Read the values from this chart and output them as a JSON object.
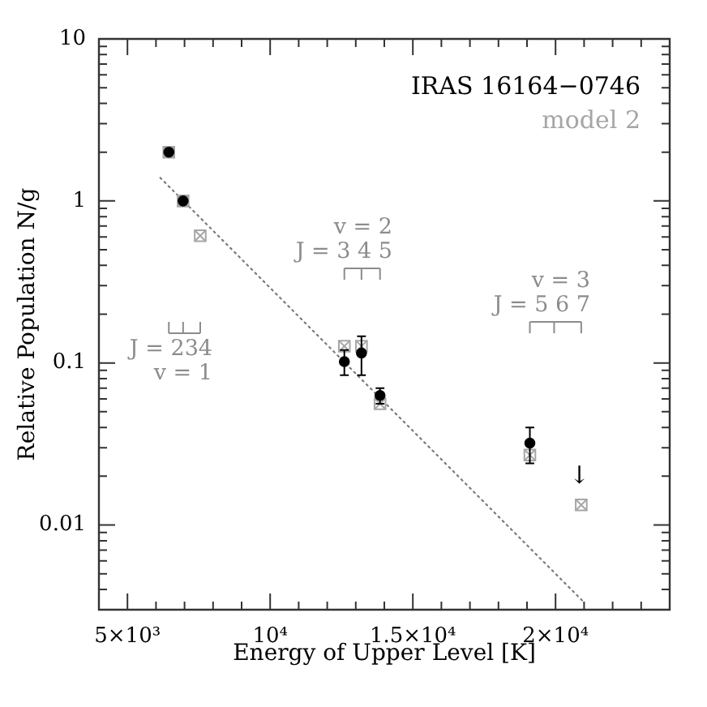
{
  "chart_data": {
    "type": "scatter",
    "xlabel": "Energy of Upper Level [K]",
    "ylabel": "Relative Population N/g",
    "x": [
      6450,
      6950,
      7550,
      12600,
      13200,
      13850,
      19100,
      19950,
      20900
    ],
    "series": [
      {
        "name": "IRAS 16164−0746",
        "color": "#000000",
        "marker": "circle",
        "values": [
          2.0,
          1.0,
          null,
          0.102,
          0.115,
          0.063,
          0.032,
          null,
          null
        ],
        "errors": [
          null,
          null,
          null,
          0.018,
          0.031,
          0.007,
          0.008,
          null,
          null
        ]
      },
      {
        "name": "model 2",
        "color": "#a6a6a6",
        "marker": "square",
        "values": [
          2.0,
          1.0,
          0.61,
          0.127,
          0.127,
          0.056,
          0.027,
          null,
          0.0133
        ]
      },
      {
        "type": "line",
        "color": "#7a7a7a",
        "marker": "none",
        "line_style": "dotted",
        "x": [
          6150,
          20950
        ],
        "values": [
          1.39,
          0.0034
        ]
      }
    ],
    "xlim": [
      4000,
      24000
    ],
    "xticks": [
      {
        "value": 5000,
        "label": "5×10³"
      },
      {
        "value": 6000,
        "label": null
      },
      {
        "value": 7000,
        "label": null
      },
      {
        "value": 8000,
        "label": null
      },
      {
        "value": 9000,
        "label": null
      },
      {
        "value": 10000,
        "label": "10⁴"
      },
      {
        "value": 11000,
        "label": null
      },
      {
        "value": 12000,
        "label": null
      },
      {
        "value": 13000,
        "label": null
      },
      {
        "value": 14000,
        "label": null
      },
      {
        "value": 15000,
        "label": "1.5×10⁴"
      },
      {
        "value": 16000,
        "label": null
      },
      {
        "value": 17000,
        "label": null
      },
      {
        "value": 18000,
        "label": null
      },
      {
        "value": 19000,
        "label": null
      },
      {
        "value": 20000,
        "label": "2×10⁴"
      },
      {
        "value": 21000,
        "label": null
      },
      {
        "value": 22000,
        "label": null
      },
      {
        "value": 23000,
        "label": null
      }
    ],
    "ylim": [
      0.003,
      10
    ],
    "yticks": [
      {
        "value": 0.004,
        "label": null
      },
      {
        "value": 0.005,
        "label": null
      },
      {
        "value": 0.006,
        "label": null
      },
      {
        "value": 0.007,
        "label": null
      },
      {
        "value": 0.008,
        "label": null
      },
      {
        "value": 0.009,
        "label": null
      },
      0.01,
      {
        "value": 0.02,
        "label": null
      },
      {
        "value": 0.03,
        "label": null
      },
      {
        "value": 0.04,
        "label": null
      },
      {
        "value": 0.05,
        "label": null
      },
      {
        "value": 0.06,
        "label": null
      },
      {
        "value": 0.07,
        "label": null
      },
      {
        "value": 0.08,
        "label": null
      },
      {
        "value": 0.09,
        "label": null
      },
      0.1,
      {
        "value": 0.2,
        "label": null
      },
      {
        "value": 0.3,
        "label": null
      },
      {
        "value": 0.4,
        "label": null
      },
      {
        "value": 0.5,
        "label": null
      },
      {
        "value": 0.6,
        "label": null
      },
      {
        "value": 0.7,
        "label": null
      },
      {
        "value": 0.8,
        "label": null
      },
      {
        "value": 0.9,
        "label": null
      },
      1,
      {
        "value": 2,
        "label": null
      },
      {
        "value": 3,
        "label": null
      },
      {
        "value": 4,
        "label": null
      },
      {
        "value": 5,
        "label": null
      },
      {
        "value": 6,
        "label": null
      },
      {
        "value": 7,
        "label": null
      },
      {
        "value": 8,
        "label": null
      },
      {
        "value": 9,
        "label": null
      },
      10
    ],
    "log": "y",
    "grid": false,
    "legend": "top right",
    "annotations": [
      "J = 234\nv = 1",
      "v = 2\nJ = 3 4 5",
      "v = 3\nJ = 5 6 7",
      "↓"
    ]
  }
}
